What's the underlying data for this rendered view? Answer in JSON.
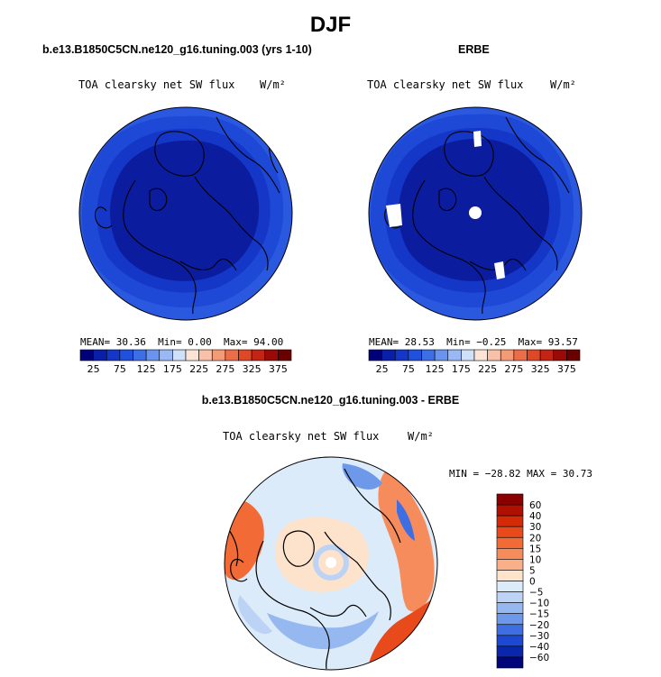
{
  "figure_title": "DJF",
  "chart_data": [
    {
      "type": "heatmap",
      "title": "b.e13.B1850C5CN.ne120_g16.tuning.003 (yrs 1-10)",
      "variable": "TOA clearsky net SW flux",
      "units": "W/m²",
      "projection": "north polar stereographic",
      "stats": {
        "mean": "30.36",
        "min": "0.00",
        "max": "94.00"
      },
      "stats_labels": {
        "mean": "MEAN=",
        "min": "Min=",
        "max": "Max="
      },
      "colorbar": {
        "levels": [
          25,
          50,
          75,
          100,
          125,
          150,
          175,
          200,
          225,
          250,
          275,
          300,
          325,
          350,
          375
        ],
        "tick_labels": [
          "25",
          "75",
          "125",
          "175",
          "225",
          "275",
          "325",
          "375"
        ],
        "colors": [
          "#00007a",
          "#0a1fa8",
          "#1437c8",
          "#2050dc",
          "#3c6ee6",
          "#6a93ee",
          "#9ab9f4",
          "#cfe0fa",
          "#fbe4d6",
          "#f8c0a6",
          "#f39a76",
          "#ec6e48",
          "#de4826",
          "#c42414",
          "#9a0a06",
          "#6a0000"
        ]
      },
      "field_bands": [
        {
          "level": "< 25",
          "color": "#0b1d9e"
        },
        {
          "level": "25-50",
          "color": "#1437c8"
        },
        {
          "level": "50-75",
          "color": "#1e48d6"
        },
        {
          "level": "75-100",
          "color": "#2a58de"
        }
      ]
    },
    {
      "type": "heatmap",
      "title": "ERBE",
      "variable": "TOA clearsky net SW flux",
      "units": "W/m²",
      "projection": "north polar stereographic",
      "stats": {
        "mean": "28.53",
        "min": "−0.25",
        "max": "93.57"
      },
      "stats_labels": {
        "mean": "MEAN=",
        "min": "Min=",
        "max": "Max="
      },
      "colorbar": {
        "levels": [
          25,
          50,
          75,
          100,
          125,
          150,
          175,
          200,
          225,
          250,
          275,
          300,
          325,
          350,
          375
        ],
        "tick_labels": [
          "25",
          "75",
          "125",
          "175",
          "225",
          "275",
          "325",
          "375"
        ],
        "colors": [
          "#00007a",
          "#0a1fa8",
          "#1437c8",
          "#2050dc",
          "#3c6ee6",
          "#6a93ee",
          "#9ab9f4",
          "#cfe0fa",
          "#fbe4d6",
          "#f8c0a6",
          "#f39a76",
          "#ec6e48",
          "#de4826",
          "#c42414",
          "#9a0a06",
          "#6a0000"
        ]
      },
      "missing_data_regions": [
        "Greenland coast",
        "North Pole",
        "Central Asia",
        "Bering Strait"
      ]
    },
    {
      "type": "heatmap",
      "title": "b.e13.B1850C5CN.ne120_g16.tuning.003 - ERBE",
      "variable": "TOA clearsky net SW flux",
      "units": "W/m²",
      "projection": "north polar stereographic",
      "stats": {
        "min": "−28.82",
        "max": "30.73"
      },
      "stats_labels": {
        "min": "MIN =",
        "max": "MAX ="
      },
      "colorbar": {
        "levels": [
          -60,
          -40,
          -30,
          -20,
          -15,
          -10,
          -5,
          0,
          5,
          10,
          15,
          20,
          30,
          40,
          60
        ],
        "tick_labels": [
          "60",
          "40",
          "30",
          "20",
          "15",
          "10",
          "5",
          "0",
          "−5",
          "−10",
          "−15",
          "−20",
          "−30",
          "−40",
          "−60"
        ],
        "colors": [
          "#8a0000",
          "#b01000",
          "#d42a08",
          "#e84a1c",
          "#f26a36",
          "#f68c5c",
          "#f9b088",
          "#fde2cc",
          "#dcebfa",
          "#bcd3f6",
          "#96b8f0",
          "#6e98ea",
          "#3e6ee2",
          "#1c48d2",
          "#0a26aa",
          "#00067a"
        ]
      }
    }
  ]
}
